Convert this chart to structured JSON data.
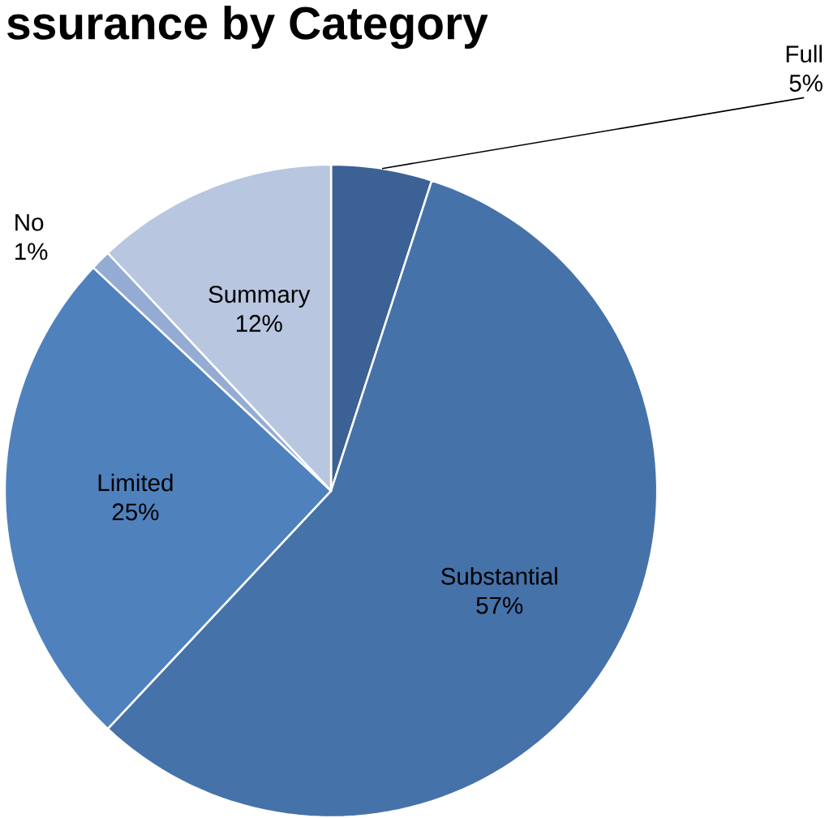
{
  "chart_data": {
    "type": "pie",
    "title": "ssurance by Category",
    "categories": [
      "Full",
      "Substantial",
      "Limited",
      "No",
      "Summary"
    ],
    "values": [
      5,
      57,
      25,
      1,
      12
    ],
    "value_labels": [
      "5%",
      "57%",
      "25%",
      "1%",
      "12%"
    ],
    "colors": [
      "#3c6195",
      "#4672aa",
      "#4f81bd",
      "#94acd3",
      "#b8c6e0"
    ]
  }
}
